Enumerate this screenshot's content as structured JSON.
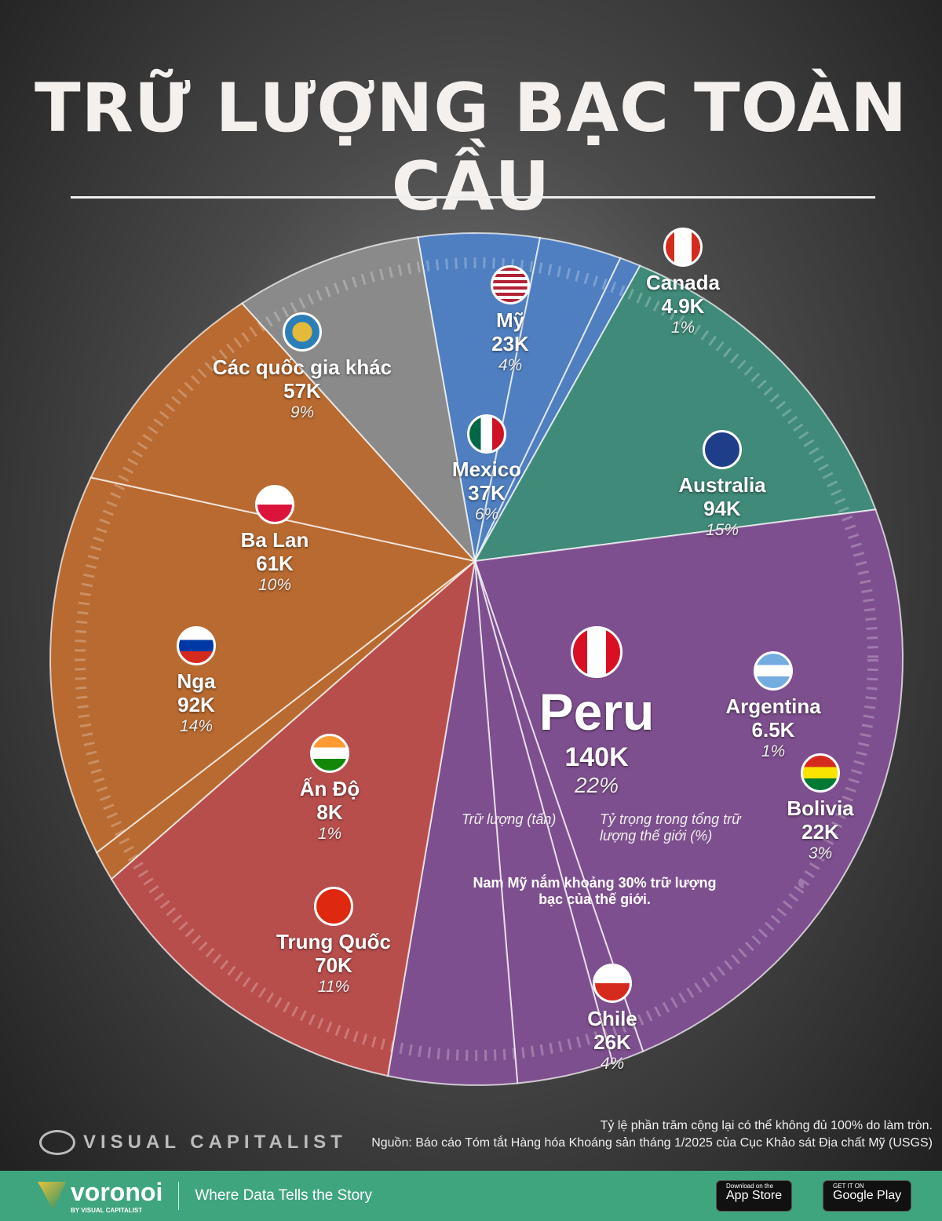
{
  "title": "TRỮ LƯỢNG BẠC TOÀN CẦU",
  "chart_data": {
    "type": "pie",
    "title": "TRỮ LƯỢNG BẠC TOÀN CẦU",
    "unit": "tấn",
    "slices": [
      {
        "name": "Mexico",
        "value": 37000,
        "label": "37K",
        "pct": 6,
        "pct_label": "6%",
        "color": "#4f7fc0"
      },
      {
        "name": "Mỹ",
        "value": 23000,
        "label": "23K",
        "pct": 4,
        "pct_label": "4%",
        "color": "#4f7fc0"
      },
      {
        "name": "Canada",
        "value": 4900,
        "label": "4.9K",
        "pct": 1,
        "pct_label": "1%",
        "color": "#4f7fc0"
      },
      {
        "name": "Australia",
        "value": 94000,
        "label": "94K",
        "pct": 15,
        "pct_label": "15%",
        "color": "#3f8a78"
      },
      {
        "name": "Peru",
        "value": 140000,
        "label": "140K",
        "pct": 22,
        "pct_label": "22%",
        "color": "#7e4f8e"
      },
      {
        "name": "Argentina",
        "value": 6500,
        "label": "6.5K",
        "pct": 1,
        "pct_label": "1%",
        "color": "#7e4f8e"
      },
      {
        "name": "Bolivia",
        "value": 22000,
        "label": "22K",
        "pct": 3,
        "pct_label": "3%",
        "color": "#7e4f8e"
      },
      {
        "name": "Chile",
        "value": 26000,
        "label": "26K",
        "pct": 4,
        "pct_label": "4%",
        "color": "#7e4f8e"
      },
      {
        "name": "Trung Quốc",
        "value": 70000,
        "label": "70K",
        "pct": 11,
        "pct_label": "11%",
        "color": "#b84e4c"
      },
      {
        "name": "Ấn Độ",
        "value": 8000,
        "label": "8K",
        "pct": 1,
        "pct_label": "1%",
        "color": "#b96a30"
      },
      {
        "name": "Nga",
        "value": 92000,
        "label": "92K",
        "pct": 14,
        "pct_label": "14%",
        "color": "#b96a30"
      },
      {
        "name": "Ba Lan",
        "value": 61000,
        "label": "61K",
        "pct": 10,
        "pct_label": "10%",
        "color": "#b96a30"
      },
      {
        "name": "Các quốc gia khác",
        "value": 57000,
        "label": "57K",
        "pct": 9,
        "pct_label": "9%",
        "color": "#8a8a8a"
      }
    ]
  },
  "legend": {
    "value_note": "Trữ lượng (tấn)",
    "pct_note": "Tỷ trọng trong tổng trữ lượng thế giới (%)"
  },
  "annotation": "Nam Mỹ nắm khoảng 30% trữ lượng bạc của thế giới.",
  "footnote": "Tỷ lệ phần trăm cộng lại có thể không đủ 100% do làm tròn.",
  "source": "Nguồn: Báo cáo Tóm tắt Hàng hóa Khoáng sản tháng 1/2025 của Cục Khảo sát Địa chất Mỹ (USGS)",
  "brand": {
    "vc": "VISUAL CAPITALIST",
    "voronoi": "voronoi",
    "by": "BY VISUAL CAPITALIST",
    "tagline": "Where Data Tells the Story",
    "appstore_small": "Download on the",
    "appstore": "App Store",
    "gplay_small": "GET IT ON",
    "gplay": "Google Play"
  }
}
